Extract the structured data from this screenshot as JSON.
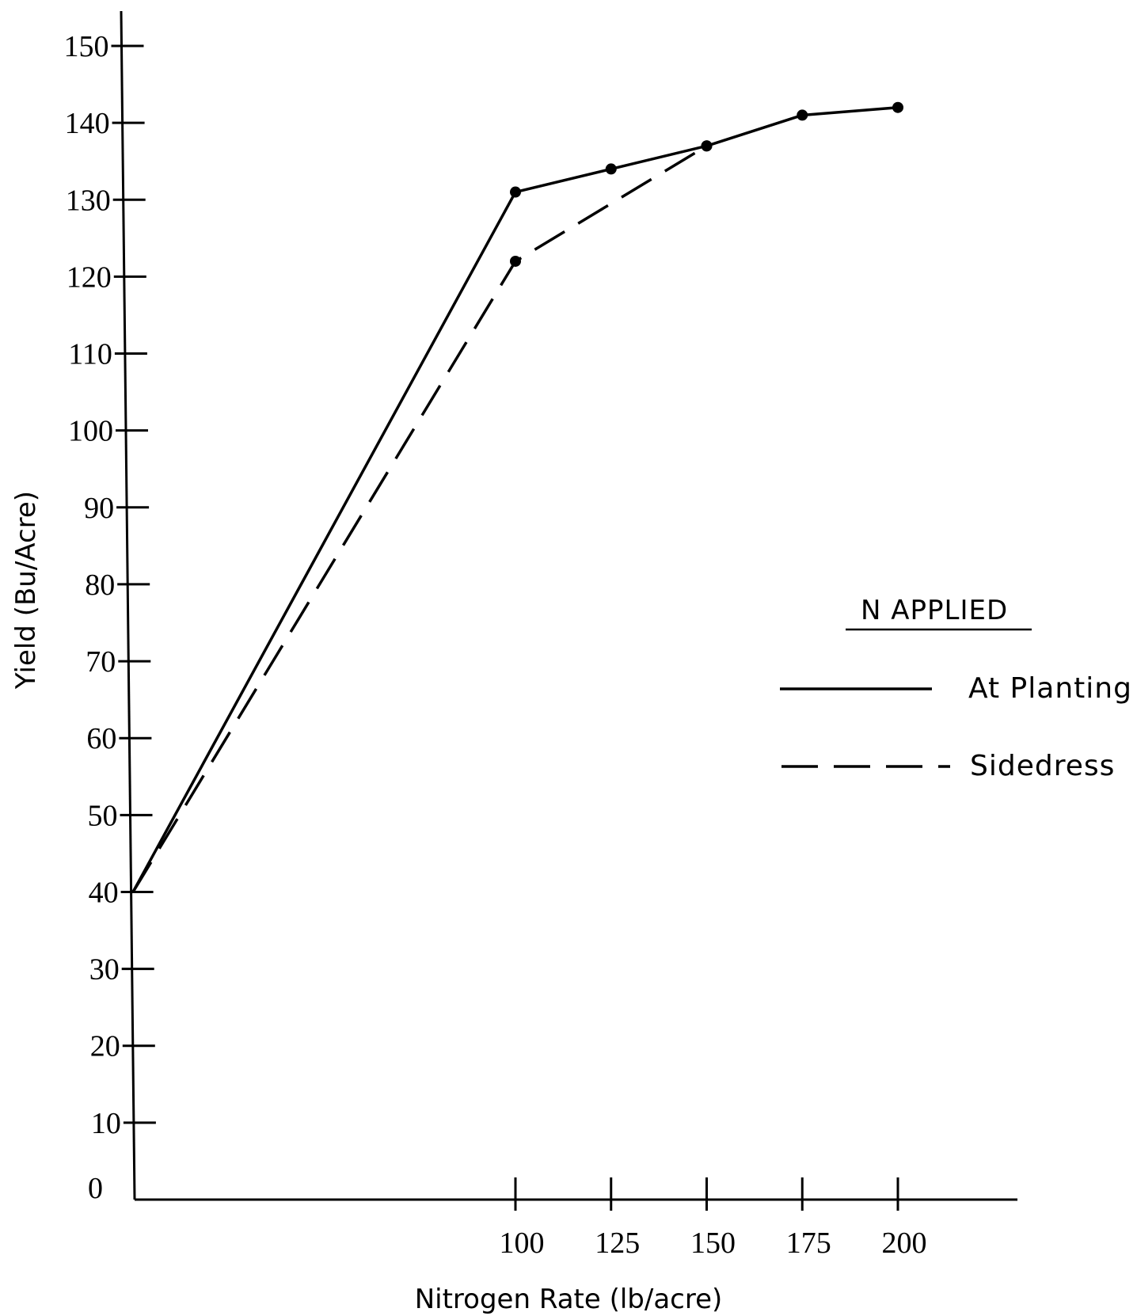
{
  "chart_data": {
    "type": "line",
    "xlabel": "Nitrogen Rate (lb/acre)",
    "ylabel": "Yield (Bu/Acre)",
    "xlim": [
      0,
      220
    ],
    "ylim": [
      0,
      150
    ],
    "x_ticks": [
      100,
      125,
      150,
      175,
      200
    ],
    "y_ticks": [
      0,
      10,
      20,
      30,
      40,
      50,
      60,
      70,
      80,
      90,
      100,
      110,
      120,
      130,
      140,
      150
    ],
    "legend": {
      "title": "N APPLIED",
      "placement": "right",
      "entries": [
        "At Planting",
        "Sidedress"
      ]
    },
    "series": [
      {
        "name": "At Planting",
        "style": "solid",
        "x": [
          0,
          100,
          125,
          150,
          175,
          200
        ],
        "y": [
          40,
          131,
          134,
          137,
          141,
          142
        ]
      },
      {
        "name": "Sidedress",
        "style": "dashed",
        "x": [
          0,
          100,
          150
        ],
        "y": [
          40,
          122,
          137
        ]
      }
    ]
  }
}
